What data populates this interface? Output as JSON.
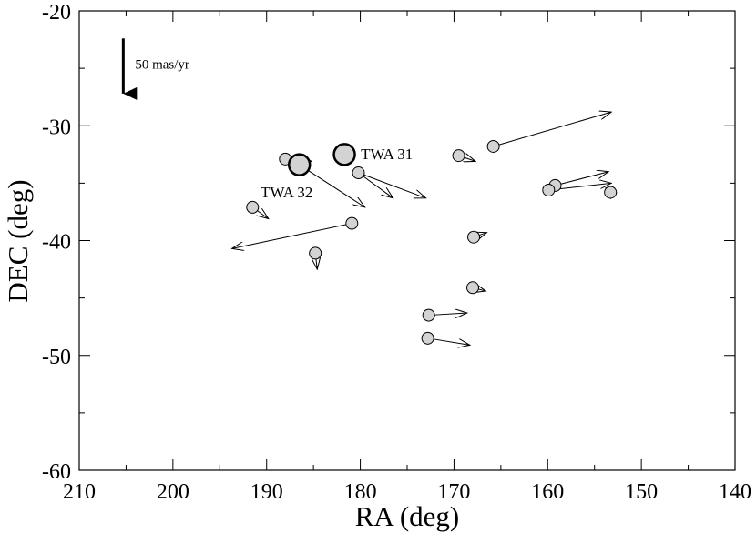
{
  "chart_data": {
    "type": "scatter",
    "title": "",
    "xlabel": "RA (deg)",
    "ylabel": "DEC (deg)",
    "xlim": [
      210,
      140
    ],
    "ylim": [
      -60,
      -20
    ],
    "x_ticks": [
      210,
      200,
      190,
      180,
      170,
      160,
      150,
      140
    ],
    "x_tick_labels": [
      "210",
      "200",
      "190",
      "180",
      "170",
      "160",
      "150",
      "140"
    ],
    "y_ticks": [
      -60,
      -50,
      -40,
      -30,
      -20
    ],
    "y_tick_labels": [
      "-60",
      "-50",
      "-40",
      "-30",
      "-20"
    ],
    "grid": false,
    "colors": {
      "marker_fill": "#d3d3d3",
      "stroke": "#000000"
    },
    "scale_bar": {
      "label": "50 mas/yr",
      "ra": 205.3,
      "dec_start": -22.4,
      "dec_end": -27.2
    },
    "points": [
      {
        "ra": 188.0,
        "dec": -32.9,
        "end_ra": 185.2,
        "end_dec": -33.1,
        "size": "small"
      },
      {
        "ra": 186.5,
        "dec": -33.4,
        "end_ra": 179.5,
        "end_dec": -37.1,
        "size": "large",
        "label": "TWA 32"
      },
      {
        "ra": 181.7,
        "dec": -32.5,
        "end_ra": 181.7,
        "end_dec": -32.5,
        "size": "large",
        "label": "TWA 31"
      },
      {
        "ra": 180.2,
        "dec": -34.1,
        "end_ra": 176.5,
        "end_dec": -36.3,
        "size": "small"
      },
      {
        "ra": 180.2,
        "dec": -34.1,
        "end_ra": 173.0,
        "end_dec": -36.3,
        "size": "none"
      },
      {
        "ra": 191.5,
        "dec": -37.1,
        "end_ra": 189.8,
        "end_dec": -38.1,
        "size": "small"
      },
      {
        "ra": 180.9,
        "dec": -38.5,
        "end_ra": 193.7,
        "end_dec": -40.7,
        "size": "small"
      },
      {
        "ra": 184.8,
        "dec": -41.1,
        "end_ra": 184.6,
        "end_dec": -42.5,
        "size": "small"
      },
      {
        "ra": 169.5,
        "dec": -32.6,
        "end_ra": 167.7,
        "end_dec": -33.1,
        "size": "small"
      },
      {
        "ra": 165.8,
        "dec": -31.8,
        "end_ra": 153.2,
        "end_dec": -28.8,
        "size": "small"
      },
      {
        "ra": 167.9,
        "dec": -39.7,
        "end_ra": 166.5,
        "end_dec": -39.3,
        "size": "small"
      },
      {
        "ra": 168.0,
        "dec": -44.1,
        "end_ra": 166.6,
        "end_dec": -44.4,
        "size": "small"
      },
      {
        "ra": 172.7,
        "dec": -46.5,
        "end_ra": 168.6,
        "end_dec": -46.3,
        "size": "small"
      },
      {
        "ra": 172.8,
        "dec": -48.5,
        "end_ra": 168.3,
        "end_dec": -49.1,
        "size": "small"
      },
      {
        "ra": 159.2,
        "dec": -35.2,
        "end_ra": 153.5,
        "end_dec": -34.0,
        "size": "small"
      },
      {
        "ra": 159.9,
        "dec": -35.6,
        "end_ra": 153.2,
        "end_dec": -35.0,
        "size": "small"
      },
      {
        "ra": 153.3,
        "dec": -35.8,
        "end_ra": 153.8,
        "end_dec": -35.4,
        "size": "small"
      }
    ]
  }
}
